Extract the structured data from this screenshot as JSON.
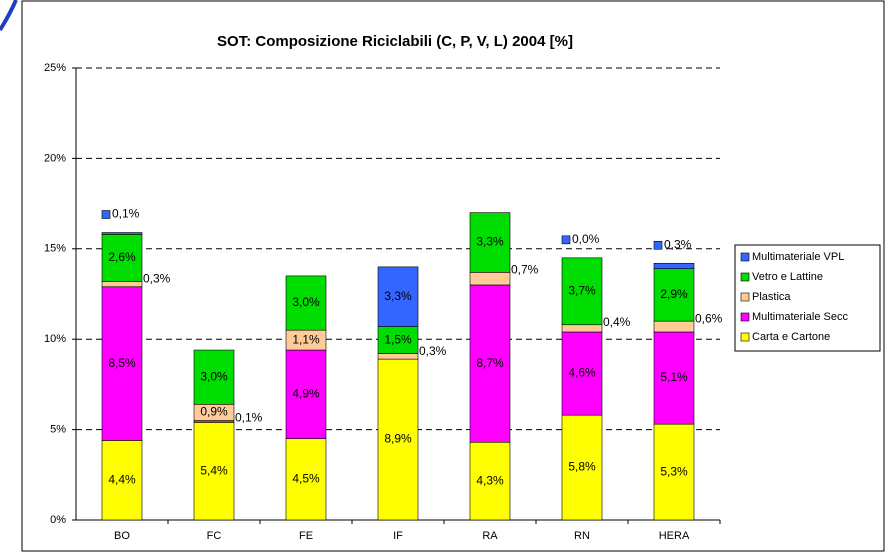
{
  "chart_data": {
    "type": "stacked_bar",
    "title": "SOT: Composizione Riciclabili (C, P, V, L)  2004 [%]",
    "categories": [
      "BO",
      "FC",
      "FE",
      "IF",
      "RA",
      "RN",
      "HERA"
    ],
    "series": [
      {
        "name": "Carta e Cartone",
        "color": "#ffff00",
        "values": [
          4.4,
          5.4,
          4.5,
          8.9,
          4.3,
          5.8,
          5.3
        ],
        "value_labels": [
          "4,4%",
          "5,4%",
          "4,5%",
          "8,9%",
          "4,3%",
          "5,8%",
          "5,3%"
        ]
      },
      {
        "name": "Multimateriale Secc",
        "color": "#ff00ff",
        "values": [
          8.5,
          0.1,
          4.9,
          null,
          8.7,
          4.6,
          5.1
        ],
        "value_labels": [
          "8,5%",
          "0,1%",
          "4,9%",
          null,
          "8,7%",
          "4,6%",
          "5,1%"
        ]
      },
      {
        "name": "Plastica",
        "color": "#ffcc99",
        "values": [
          0.3,
          0.9,
          1.1,
          0.3,
          0.7,
          0.4,
          0.6
        ],
        "value_labels": [
          "0,3%",
          "0,9%",
          "1,1%",
          "0,3%",
          "0,7%",
          "0,4%",
          "0,6%"
        ]
      },
      {
        "name": "Vetro e Lattine",
        "color": "#00dd00",
        "values": [
          2.6,
          3.0,
          3.0,
          1.5,
          3.3,
          3.7,
          2.9
        ],
        "value_labels": [
          "2,6%",
          "3,0%",
          "3,0%",
          "1,5%",
          "3,3%",
          "3,7%",
          "2,9%"
        ]
      },
      {
        "name": "Multimateriale VPL",
        "color": "#3366ff",
        "values": [
          0.1,
          null,
          null,
          3.3,
          null,
          0.0,
          0.3
        ],
        "value_labels": [
          "0,1%",
          null,
          null,
          "3,3%",
          null,
          "0,0%",
          "0,3%"
        ]
      }
    ],
    "ylim": [
      0,
      25
    ],
    "yticks": [
      {
        "value": 0,
        "label": "0%"
      },
      {
        "value": 5,
        "label": "5%"
      },
      {
        "value": 10,
        "label": "10%"
      },
      {
        "value": 15,
        "label": "15%"
      },
      {
        "value": 20,
        "label": "20%"
      },
      {
        "value": 25,
        "label": "25%"
      }
    ],
    "grid": true,
    "legend": "right"
  }
}
